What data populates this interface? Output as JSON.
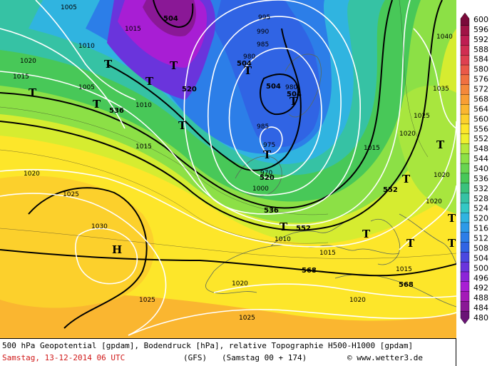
{
  "footer": {
    "line1": "500 hPa Geopotential [gpdam], Bodendruck [hPa], relative Topographie H500-H1000 [gpdam]",
    "date": "Samstag, 13-12-2014  06 UTC",
    "model": "(GFS)",
    "run": "(Samstag 00 + 174)",
    "copyright": "© www.wetter3.de"
  },
  "legend": {
    "levels": [
      600,
      596,
      592,
      588,
      584,
      580,
      576,
      572,
      568,
      564,
      560,
      556,
      552,
      548,
      544,
      540,
      536,
      532,
      528,
      524,
      520,
      516,
      512,
      508,
      504,
      500,
      496,
      492,
      488,
      484,
      480
    ],
    "colors": [
      "#7a0a3a",
      "#a01446",
      "#be1e52",
      "#d02e52",
      "#de4050",
      "#ea5848",
      "#f07040",
      "#f4883a",
      "#f89e34",
      "#fab630",
      "#fcd02c",
      "#fde62a",
      "#eef02e",
      "#b4e83c",
      "#8ce046",
      "#68d450",
      "#48c858",
      "#3ac27c",
      "#36c2a4",
      "#34c8c4",
      "#30b4e0",
      "#2c9ae8",
      "#2c7ee8",
      "#3064e4",
      "#4a48e0",
      "#6a34dc",
      "#8c24d8",
      "#a81ed4",
      "#a41ab8",
      "#8a1896",
      "#6a1476"
    ]
  },
  "map": {
    "pressure_labels": [
      "1005",
      "1010",
      "1015",
      "1020",
      "1025",
      "1030",
      "1035",
      "1040",
      "995",
      "990",
      "985",
      "980",
      "975",
      "970",
      "1000"
    ],
    "height_labels": [
      "504",
      "520",
      "536",
      "552",
      "568"
    ],
    "lows": [
      "T"
    ],
    "highs": [
      "H"
    ]
  }
}
